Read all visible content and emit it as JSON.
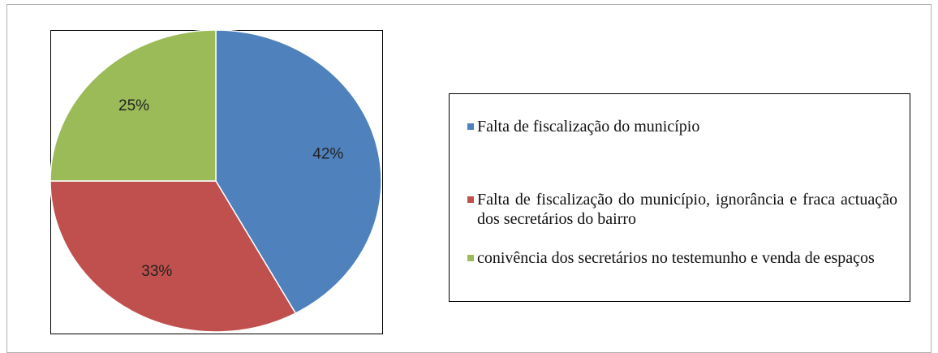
{
  "chart_data": {
    "type": "pie",
    "categories": [
      "Falta de fiscalização do município",
      "Falta de fiscalização do município, ignorância e fraca actuação dos secretários do bairro",
      "conivência dos secretários no testemunho e venda de espaços"
    ],
    "values": [
      42,
      33,
      25
    ],
    "value_labels": [
      "42%",
      "33%",
      "25%"
    ],
    "colors": [
      "#4f81bd",
      "#c0504d",
      "#9bbb59"
    ],
    "legend": "right"
  }
}
